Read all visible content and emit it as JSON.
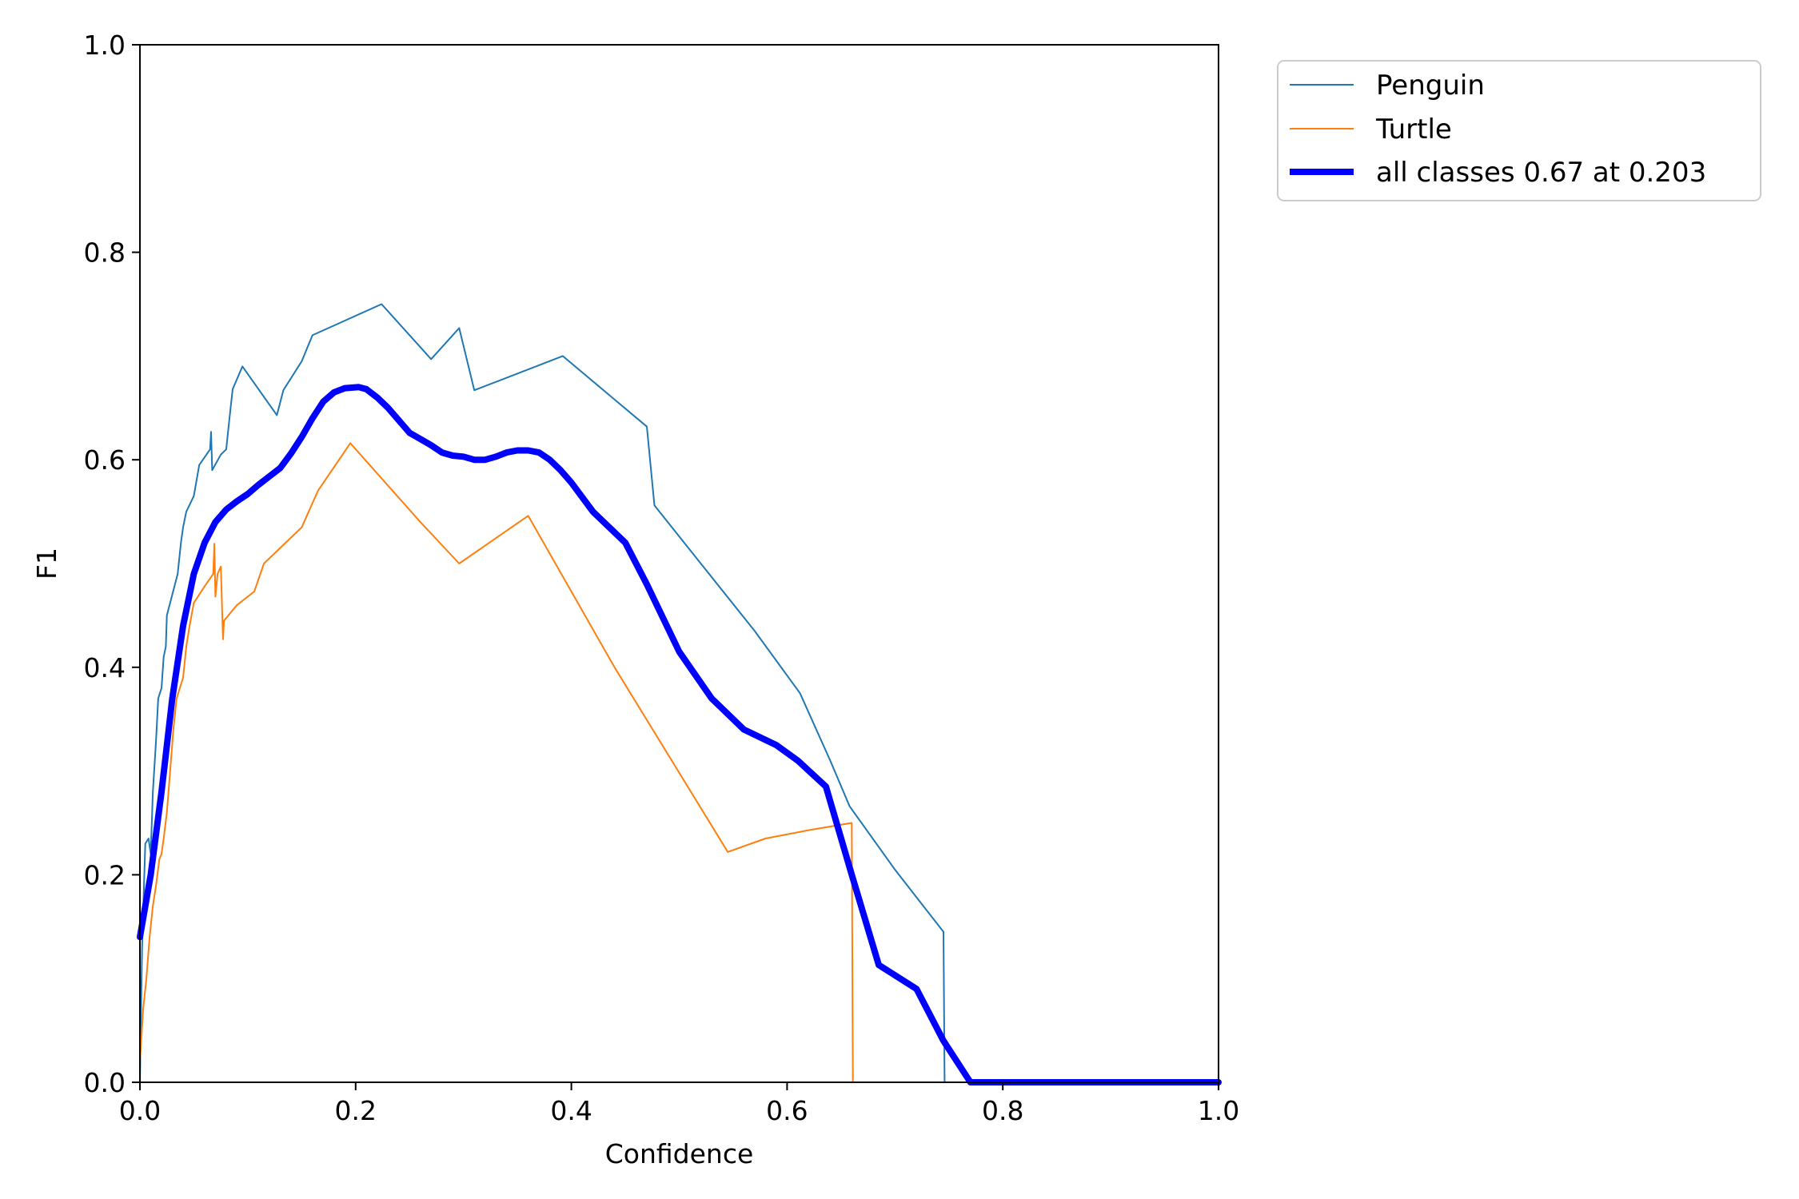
{
  "chart_data": {
    "type": "line",
    "xlabel": "Confidence",
    "ylabel": "F1",
    "xlim": [
      0.0,
      1.0
    ],
    "ylim": [
      0.0,
      1.0
    ],
    "x_ticks": [
      "0.0",
      "0.2",
      "0.4",
      "0.6",
      "0.8",
      "1.0"
    ],
    "y_ticks": [
      "0.0",
      "0.2",
      "0.4",
      "0.6",
      "0.8",
      "1.0"
    ],
    "grid": false,
    "legend_position": "outside-top-right",
    "series": [
      {
        "name": "Penguin",
        "color": "#1f77b4",
        "style": "thin",
        "points": [
          [
            0.0,
            0.0
          ],
          [
            0.002,
            0.13
          ],
          [
            0.005,
            0.23
          ],
          [
            0.008,
            0.235
          ],
          [
            0.01,
            0.22
          ],
          [
            0.012,
            0.28
          ],
          [
            0.015,
            0.33
          ],
          [
            0.017,
            0.37
          ],
          [
            0.02,
            0.38
          ],
          [
            0.022,
            0.41
          ],
          [
            0.024,
            0.42
          ],
          [
            0.025,
            0.45
          ],
          [
            0.03,
            0.47
          ],
          [
            0.035,
            0.49
          ],
          [
            0.038,
            0.52
          ],
          [
            0.04,
            0.535
          ],
          [
            0.043,
            0.55
          ],
          [
            0.05,
            0.565
          ],
          [
            0.055,
            0.595
          ],
          [
            0.065,
            0.61
          ],
          [
            0.066,
            0.627
          ],
          [
            0.067,
            0.59
          ],
          [
            0.075,
            0.605
          ],
          [
            0.08,
            0.61
          ],
          [
            0.083,
            0.64
          ],
          [
            0.086,
            0.668
          ],
          [
            0.095,
            0.69
          ],
          [
            0.127,
            0.643
          ],
          [
            0.133,
            0.667
          ],
          [
            0.15,
            0.695
          ],
          [
            0.16,
            0.72
          ],
          [
            0.224,
            0.75
          ],
          [
            0.27,
            0.697
          ],
          [
            0.296,
            0.727
          ],
          [
            0.31,
            0.667
          ],
          [
            0.392,
            0.7
          ],
          [
            0.47,
            0.632
          ],
          [
            0.477,
            0.556
          ],
          [
            0.52,
            0.5
          ],
          [
            0.57,
            0.435
          ],
          [
            0.612,
            0.375
          ],
          [
            0.64,
            0.31
          ],
          [
            0.658,
            0.266
          ],
          [
            0.7,
            0.205
          ],
          [
            0.745,
            0.145
          ],
          [
            0.746,
            0.0
          ],
          [
            1.0,
            0.0
          ]
        ]
      },
      {
        "name": "Turtle",
        "color": "#ff7f0e",
        "style": "thin",
        "points": [
          [
            0.0,
            0.02
          ],
          [
            0.003,
            0.07
          ],
          [
            0.006,
            0.1
          ],
          [
            0.009,
            0.14
          ],
          [
            0.012,
            0.17
          ],
          [
            0.015,
            0.19
          ],
          [
            0.018,
            0.215
          ],
          [
            0.02,
            0.22
          ],
          [
            0.022,
            0.235
          ],
          [
            0.025,
            0.26
          ],
          [
            0.028,
            0.3
          ],
          [
            0.031,
            0.34
          ],
          [
            0.034,
            0.37
          ],
          [
            0.037,
            0.38
          ],
          [
            0.04,
            0.39
          ],
          [
            0.043,
            0.42
          ],
          [
            0.046,
            0.44
          ],
          [
            0.05,
            0.462
          ],
          [
            0.06,
            0.478
          ],
          [
            0.068,
            0.49
          ],
          [
            0.069,
            0.519
          ],
          [
            0.07,
            0.468
          ],
          [
            0.072,
            0.49
          ],
          [
            0.075,
            0.497
          ],
          [
            0.077,
            0.427
          ],
          [
            0.078,
            0.445
          ],
          [
            0.09,
            0.46
          ],
          [
            0.106,
            0.473
          ],
          [
            0.115,
            0.5
          ],
          [
            0.15,
            0.535
          ],
          [
            0.165,
            0.57
          ],
          [
            0.195,
            0.616
          ],
          [
            0.26,
            0.54
          ],
          [
            0.296,
            0.5
          ],
          [
            0.36,
            0.546
          ],
          [
            0.44,
            0.4
          ],
          [
            0.545,
            0.222
          ],
          [
            0.58,
            0.235
          ],
          [
            0.62,
            0.243
          ],
          [
            0.66,
            0.25
          ],
          [
            0.661,
            0.0
          ],
          [
            1.0,
            0.0
          ]
        ]
      },
      {
        "name": "all classes 0.67 at 0.203",
        "color": "#0000ff",
        "style": "thick",
        "points": [
          [
            0.0,
            0.14
          ],
          [
            0.01,
            0.2
          ],
          [
            0.02,
            0.28
          ],
          [
            0.03,
            0.37
          ],
          [
            0.04,
            0.44
          ],
          [
            0.05,
            0.49
          ],
          [
            0.06,
            0.52
          ],
          [
            0.07,
            0.54
          ],
          [
            0.08,
            0.552
          ],
          [
            0.09,
            0.56
          ],
          [
            0.1,
            0.567
          ],
          [
            0.11,
            0.576
          ],
          [
            0.12,
            0.584
          ],
          [
            0.13,
            0.592
          ],
          [
            0.14,
            0.606
          ],
          [
            0.15,
            0.622
          ],
          [
            0.16,
            0.64
          ],
          [
            0.17,
            0.656
          ],
          [
            0.18,
            0.665
          ],
          [
            0.19,
            0.669
          ],
          [
            0.203,
            0.67
          ],
          [
            0.21,
            0.668
          ],
          [
            0.22,
            0.66
          ],
          [
            0.23,
            0.65
          ],
          [
            0.24,
            0.638
          ],
          [
            0.25,
            0.626
          ],
          [
            0.26,
            0.62
          ],
          [
            0.27,
            0.614
          ],
          [
            0.28,
            0.607
          ],
          [
            0.29,
            0.604
          ],
          [
            0.3,
            0.603
          ],
          [
            0.31,
            0.6
          ],
          [
            0.32,
            0.6
          ],
          [
            0.33,
            0.603
          ],
          [
            0.34,
            0.607
          ],
          [
            0.35,
            0.609
          ],
          [
            0.36,
            0.609
          ],
          [
            0.37,
            0.607
          ],
          [
            0.38,
            0.6
          ],
          [
            0.39,
            0.59
          ],
          [
            0.4,
            0.578
          ],
          [
            0.42,
            0.55
          ],
          [
            0.45,
            0.52
          ],
          [
            0.47,
            0.48
          ],
          [
            0.5,
            0.415
          ],
          [
            0.53,
            0.37
          ],
          [
            0.56,
            0.34
          ],
          [
            0.59,
            0.325
          ],
          [
            0.61,
            0.31
          ],
          [
            0.636,
            0.285
          ],
          [
            0.66,
            0.2
          ],
          [
            0.685,
            0.113
          ],
          [
            0.72,
            0.09
          ],
          [
            0.745,
            0.04
          ],
          [
            0.77,
            0.0
          ],
          [
            1.0,
            0.0
          ]
        ]
      }
    ]
  }
}
